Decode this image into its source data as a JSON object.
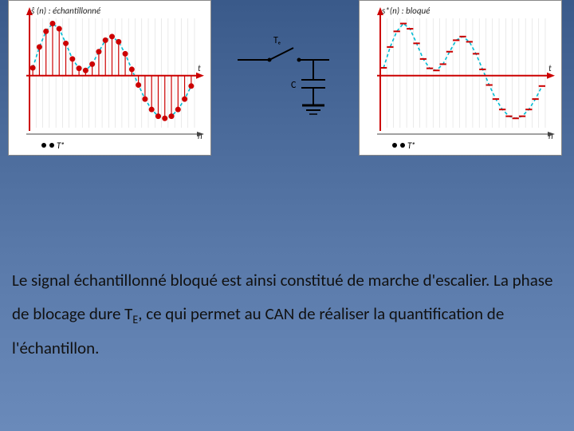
{
  "left_chart": {
    "type": "stem-scatter",
    "title": "ŝ (n) : échantillonné",
    "title_fontsize": 11,
    "background_color": "#ffffff",
    "axis_color": "#cc0000",
    "grid_color": "#dddddd",
    "curve_dash_color": "#00bcd4",
    "marker_color": "#cc0000",
    "stem_color": "#cc0000",
    "marker_radius": 3.5,
    "xlabel_t": "t",
    "xlabel_n": "n",
    "yaxis_arrow": true,
    "xaxis_arrow": true,
    "te_marker_label": "Tₑ",
    "te_marker_dots": 2,
    "x_values": [
      0,
      1,
      2,
      3,
      4,
      5,
      6,
      7,
      8,
      9,
      10,
      11,
      12,
      13,
      14,
      15,
      16,
      17,
      18,
      19,
      20,
      21,
      22,
      23,
      24
    ],
    "y_values": [
      0.15,
      0.55,
      0.85,
      1.0,
      0.9,
      0.62,
      0.32,
      0.14,
      0.1,
      0.22,
      0.46,
      0.68,
      0.75,
      0.65,
      0.42,
      0.12,
      -0.18,
      -0.45,
      -0.65,
      -0.78,
      -0.82,
      -0.78,
      -0.65,
      -0.45,
      -0.2
    ],
    "ylim": [
      -1,
      1.1
    ],
    "xlim": [
      0,
      25
    ]
  },
  "right_chart": {
    "type": "step-hold",
    "title": "s*(n) : bloqué",
    "title_fontsize": 11,
    "background_color": "#ffffff",
    "axis_color": "#cc0000",
    "grid_color": "#dddddd",
    "curve_dash_color": "#00bcd4",
    "step_color": "#cc0000",
    "step_linewidth": 2,
    "xlabel_t": "t",
    "xlabel_n": "n",
    "yaxis_arrow": true,
    "xaxis_arrow": true,
    "te_marker_label": "Tₑ",
    "te_marker_dots": 2,
    "x_values": [
      0,
      1,
      2,
      3,
      4,
      5,
      6,
      7,
      8,
      9,
      10,
      11,
      12,
      13,
      14,
      15,
      16,
      17,
      18,
      19,
      20,
      21,
      22,
      23,
      24
    ],
    "y_values": [
      0.15,
      0.55,
      0.85,
      1.0,
      0.9,
      0.62,
      0.32,
      0.14,
      0.1,
      0.22,
      0.46,
      0.68,
      0.75,
      0.65,
      0.42,
      0.12,
      -0.18,
      -0.45,
      -0.65,
      -0.78,
      -0.82,
      -0.78,
      -0.65,
      -0.45,
      -0.2
    ],
    "ylim": [
      -1,
      1.1
    ],
    "xlim": [
      0,
      25
    ]
  },
  "circuit": {
    "switch_label": "Tₑ",
    "cap_label": "C",
    "line_color": "#000000",
    "line_width": 2
  },
  "paragraph": {
    "text_before_sub": "Le signal échantillonné bloqué est ainsi constitué de marche d'escalier. La phase de blocage dure T",
    "sub": "E",
    "text_after_sub": ", ce qui permet au CAN de réaliser la quantification de l'échantillon.",
    "fontsize": 21,
    "color": "#111111"
  }
}
